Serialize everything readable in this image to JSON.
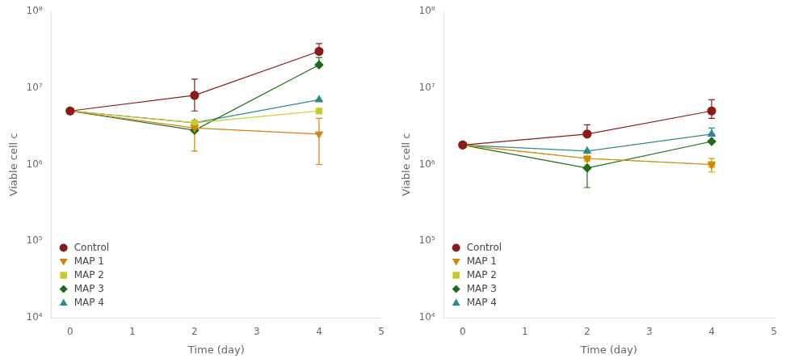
{
  "chart_data": [
    {
      "type": "line",
      "xlabel": "Time (day)",
      "ylabel": "Viable cell c",
      "xlim": [
        -0.3,
        5
      ],
      "xticks": [
        0,
        1,
        2,
        3,
        4,
        5
      ],
      "ylim": [
        10000,
        100000000
      ],
      "yticks": [
        {
          "value": 10000,
          "label": "10⁴"
        },
        {
          "value": 100000,
          "label": "10⁵"
        },
        {
          "value": 1000000,
          "label": "10⁶"
        },
        {
          "value": 10000000,
          "label": "10⁷"
        },
        {
          "value": 100000000,
          "label": "10⁸"
        }
      ],
      "log": "y",
      "grid": false,
      "legend": "lower left",
      "series": [
        {
          "name": "Control",
          "color": "#8B1A1A",
          "marker": "circle",
          "x": [
            0,
            2,
            4
          ],
          "values": [
            5000000,
            8000000,
            30000000
          ],
          "yerr_lo": [
            0,
            3000000,
            0
          ],
          "yerr_hi": [
            0,
            5000000,
            8000000
          ]
        },
        {
          "name": "MAP 1",
          "color": "#D4820A",
          "marker": "triangle_down",
          "x": [
            0,
            2,
            4
          ],
          "values": [
            5000000,
            3000000,
            2500000
          ],
          "yerr_lo": [
            0,
            1500000,
            1500000
          ],
          "yerr_hi": [
            0,
            0,
            1500000
          ]
        },
        {
          "name": "MAP 2",
          "color": "#C8C828",
          "marker": "square",
          "x": [
            0,
            2,
            4
          ],
          "values": [
            5000000,
            3500000,
            5000000
          ],
          "yerr_lo": [
            0,
            0,
            0
          ],
          "yerr_hi": [
            0,
            0,
            0
          ]
        },
        {
          "name": "MAP 3",
          "color": "#1E6B1E",
          "marker": "diamond",
          "x": [
            0,
            2,
            4
          ],
          "values": [
            5000000,
            2800000,
            20000000
          ],
          "yerr_lo": [
            0,
            0,
            0
          ],
          "yerr_hi": [
            0,
            0,
            5000000
          ]
        },
        {
          "name": "MAP 4",
          "color": "#2E8B8B",
          "marker": "triangle_up",
          "x": [
            0,
            2,
            4
          ],
          "values": [
            5000000,
            3500000,
            7000000
          ],
          "yerr_lo": [
            0,
            0,
            0
          ],
          "yerr_hi": [
            0,
            0,
            0
          ]
        }
      ]
    },
    {
      "type": "line",
      "xlabel": "Time (day)",
      "ylabel": "Viable cell c",
      "xlim": [
        -0.3,
        5
      ],
      "xticks": [
        0,
        1,
        2,
        3,
        4,
        5
      ],
      "ylim": [
        10000,
        100000000
      ],
      "yticks": [
        {
          "value": 10000,
          "label": "10⁴"
        },
        {
          "value": 100000,
          "label": "10⁵"
        },
        {
          "value": 1000000,
          "label": "10⁶"
        },
        {
          "value": 10000000,
          "label": "10⁷"
        },
        {
          "value": 100000000,
          "label": "10⁸"
        }
      ],
      "log": "y",
      "grid": false,
      "legend": "lower left",
      "series": [
        {
          "name": "Control",
          "color": "#8B1A1A",
          "marker": "circle",
          "x": [
            0,
            2,
            4
          ],
          "values": [
            1800000,
            2500000,
            5000000
          ],
          "yerr_lo": [
            0,
            0,
            1000000
          ],
          "yerr_hi": [
            0,
            800000,
            2000000
          ]
        },
        {
          "name": "MAP 1",
          "color": "#D4820A",
          "marker": "triangle_down",
          "x": [
            0,
            2,
            4
          ],
          "values": [
            1800000,
            1200000,
            1000000
          ],
          "yerr_lo": [
            0,
            0,
            200000
          ],
          "yerr_hi": [
            0,
            0,
            200000
          ]
        },
        {
          "name": "MAP 2",
          "color": "#C8C828",
          "marker": "square",
          "x": [
            0,
            2,
            4
          ],
          "values": [
            1800000,
            1200000,
            1000000
          ],
          "yerr_lo": [
            0,
            200000,
            200000
          ],
          "yerr_hi": [
            0,
            200000,
            200000
          ]
        },
        {
          "name": "MAP 3",
          "color": "#1E6B1E",
          "marker": "diamond",
          "x": [
            0,
            2,
            4
          ],
          "values": [
            1800000,
            900000,
            2000000
          ],
          "yerr_lo": [
            0,
            400000,
            0
          ],
          "yerr_hi": [
            0,
            0,
            0
          ]
        },
        {
          "name": "MAP 4",
          "color": "#2E8B8B",
          "marker": "triangle_up",
          "x": [
            0,
            2,
            4
          ],
          "values": [
            1800000,
            1500000,
            2500000
          ],
          "yerr_lo": [
            0,
            0,
            0
          ],
          "yerr_hi": [
            0,
            0,
            500000
          ]
        }
      ]
    }
  ]
}
